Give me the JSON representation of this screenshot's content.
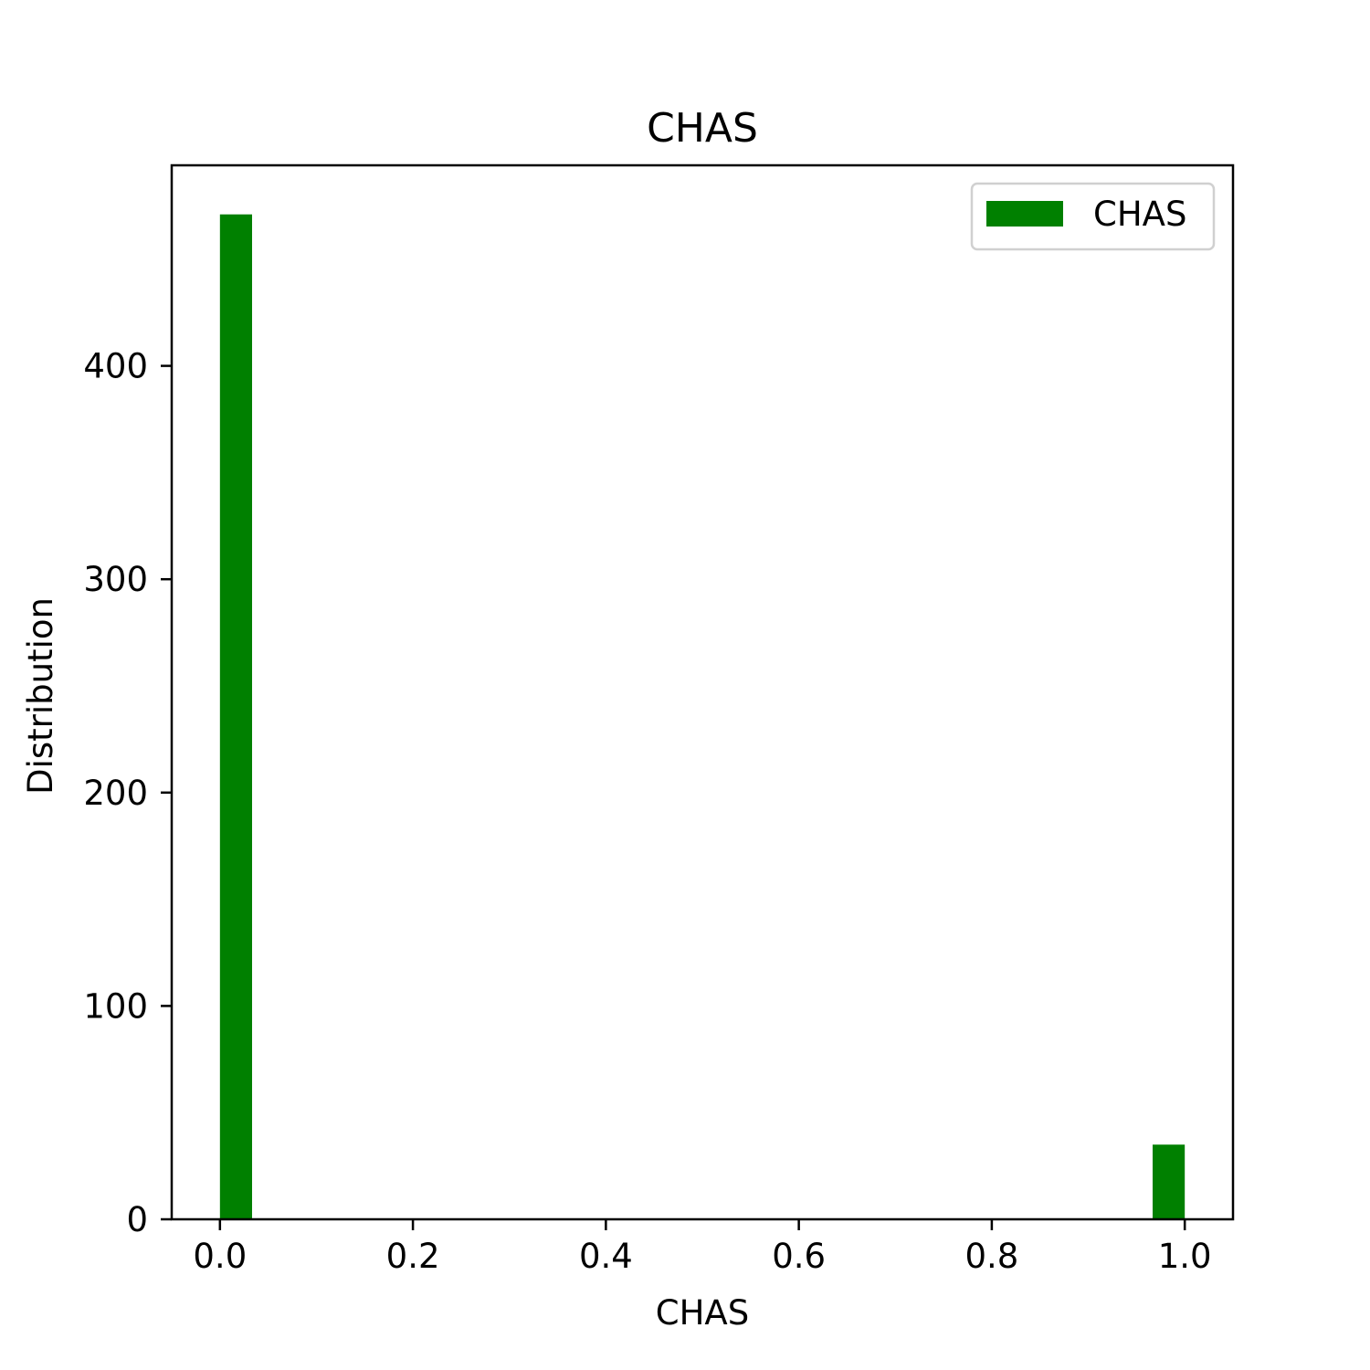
{
  "chart_data": {
    "type": "bar",
    "histogram": true,
    "title": "CHAS",
    "xlabel": "CHAS",
    "ylabel": "Distribution",
    "xlim": [
      -0.05,
      1.05
    ],
    "ylim": [
      0,
      494
    ],
    "x_ticks": [
      0.0,
      0.2,
      0.4,
      0.6,
      0.8,
      1.0
    ],
    "x_tick_labels": [
      "0.0",
      "0.2",
      "0.4",
      "0.6",
      "0.8",
      "1.0"
    ],
    "y_ticks": [
      0,
      100,
      200,
      300,
      400
    ],
    "y_tick_labels": [
      "0",
      "100",
      "200",
      "300",
      "400"
    ],
    "bin_width": 0.0333,
    "series": [
      {
        "name": "CHAS",
        "color": "#008000",
        "bins": [
          {
            "start": 0.0,
            "end": 0.0333,
            "count": 471
          },
          {
            "start": 0.9667,
            "end": 1.0,
            "count": 35
          }
        ]
      }
    ],
    "legend": {
      "position": "top-right",
      "entries": [
        "CHAS"
      ]
    },
    "grid": false
  }
}
